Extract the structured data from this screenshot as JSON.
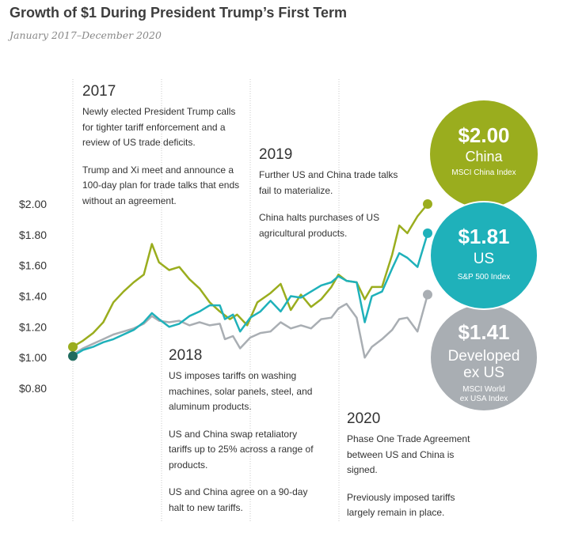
{
  "title": "Growth of $1 During President Trump’s First Term",
  "subtitle": "January 2017–December 2020",
  "chart_data": {
    "type": "line",
    "y_tick_labels": [
      "$2.00",
      "$1.80",
      "$1.60",
      "$1.40",
      "$1.20",
      "$1.00",
      "$0.80"
    ],
    "y_ticks": [
      2.0,
      1.8,
      1.6,
      1.4,
      1.2,
      1.0,
      0.8
    ],
    "ylim": [
      0.8,
      2.0
    ],
    "x_range": [
      "2017-01",
      "2020-12"
    ],
    "x_start": 2017.0,
    "x_end": 2020.92,
    "year_dividers": [
      2017.0,
      2018.0,
      2019.0,
      2020.0
    ],
    "series": [
      {
        "name": "China",
        "color": "#9aad1e",
        "points": [
          [
            2017.0,
            1.07
          ],
          [
            2017.1,
            1.11
          ],
          [
            2017.2,
            1.16
          ],
          [
            2017.3,
            1.23
          ],
          [
            2017.4,
            1.36
          ],
          [
            2017.5,
            1.43
          ],
          [
            2017.6,
            1.49
          ],
          [
            2017.7,
            1.54
          ],
          [
            2017.78,
            1.74
          ],
          [
            2017.85,
            1.62
          ],
          [
            2017.95,
            1.57
          ],
          [
            2018.05,
            1.59
          ],
          [
            2018.15,
            1.51
          ],
          [
            2018.25,
            1.45
          ],
          [
            2018.35,
            1.36
          ],
          [
            2018.45,
            1.3
          ],
          [
            2018.55,
            1.25
          ],
          [
            2018.62,
            1.28
          ],
          [
            2018.72,
            1.21
          ],
          [
            2018.82,
            1.36
          ],
          [
            2018.95,
            1.42
          ],
          [
            2019.05,
            1.48
          ],
          [
            2019.15,
            1.31
          ],
          [
            2019.25,
            1.41
          ],
          [
            2019.35,
            1.33
          ],
          [
            2019.45,
            1.38
          ],
          [
            2019.55,
            1.46
          ],
          [
            2019.62,
            1.54
          ],
          [
            2019.7,
            1.5
          ],
          [
            2019.8,
            1.49
          ],
          [
            2019.88,
            1.38
          ],
          [
            2019.95,
            1.46
          ],
          [
            2020.05,
            1.46
          ],
          [
            2020.15,
            1.67
          ],
          [
            2020.22,
            1.86
          ],
          [
            2020.3,
            1.81
          ],
          [
            2020.4,
            1.92
          ],
          [
            2020.5,
            2.0
          ]
        ]
      },
      {
        "name": "US",
        "color": "#1fb1ba",
        "points": [
          [
            2017.0,
            1.01
          ],
          [
            2017.1,
            1.05
          ],
          [
            2017.2,
            1.07
          ],
          [
            2017.3,
            1.1
          ],
          [
            2017.4,
            1.12
          ],
          [
            2017.5,
            1.15
          ],
          [
            2017.6,
            1.18
          ],
          [
            2017.7,
            1.23
          ],
          [
            2017.78,
            1.29
          ],
          [
            2017.85,
            1.25
          ],
          [
            2017.95,
            1.2
          ],
          [
            2018.05,
            1.22
          ],
          [
            2018.15,
            1.27
          ],
          [
            2018.25,
            1.3
          ],
          [
            2018.35,
            1.34
          ],
          [
            2018.45,
            1.34
          ],
          [
            2018.5,
            1.25
          ],
          [
            2018.58,
            1.28
          ],
          [
            2018.65,
            1.17
          ],
          [
            2018.75,
            1.26
          ],
          [
            2018.85,
            1.3
          ],
          [
            2018.95,
            1.37
          ],
          [
            2019.05,
            1.3
          ],
          [
            2019.15,
            1.4
          ],
          [
            2019.25,
            1.39
          ],
          [
            2019.35,
            1.43
          ],
          [
            2019.45,
            1.47
          ],
          [
            2019.55,
            1.49
          ],
          [
            2019.62,
            1.53
          ],
          [
            2019.7,
            1.5
          ],
          [
            2019.8,
            1.49
          ],
          [
            2019.88,
            1.23
          ],
          [
            2019.95,
            1.4
          ],
          [
            2020.05,
            1.43
          ],
          [
            2020.15,
            1.58
          ],
          [
            2020.22,
            1.68
          ],
          [
            2020.3,
            1.65
          ],
          [
            2020.4,
            1.59
          ],
          [
            2020.5,
            1.81
          ]
        ]
      },
      {
        "name": "Developed ex US",
        "color": "#a9aeb3",
        "points": [
          [
            2017.0,
            1.02
          ],
          [
            2017.1,
            1.06
          ],
          [
            2017.2,
            1.09
          ],
          [
            2017.3,
            1.12
          ],
          [
            2017.4,
            1.15
          ],
          [
            2017.5,
            1.17
          ],
          [
            2017.6,
            1.19
          ],
          [
            2017.7,
            1.22
          ],
          [
            2017.78,
            1.27
          ],
          [
            2017.85,
            1.24
          ],
          [
            2017.95,
            1.23
          ],
          [
            2018.05,
            1.24
          ],
          [
            2018.15,
            1.21
          ],
          [
            2018.25,
            1.23
          ],
          [
            2018.35,
            1.21
          ],
          [
            2018.45,
            1.22
          ],
          [
            2018.5,
            1.12
          ],
          [
            2018.58,
            1.14
          ],
          [
            2018.65,
            1.06
          ],
          [
            2018.75,
            1.13
          ],
          [
            2018.85,
            1.16
          ],
          [
            2018.95,
            1.17
          ],
          [
            2019.05,
            1.23
          ],
          [
            2019.15,
            1.19
          ],
          [
            2019.25,
            1.21
          ],
          [
            2019.35,
            1.19
          ],
          [
            2019.45,
            1.25
          ],
          [
            2019.55,
            1.26
          ],
          [
            2019.62,
            1.32
          ],
          [
            2019.7,
            1.35
          ],
          [
            2019.8,
            1.26
          ],
          [
            2019.88,
            1.0
          ],
          [
            2019.95,
            1.07
          ],
          [
            2020.05,
            1.12
          ],
          [
            2020.15,
            1.18
          ],
          [
            2020.22,
            1.25
          ],
          [
            2020.3,
            1.26
          ],
          [
            2020.4,
            1.17
          ],
          [
            2020.5,
            1.41
          ]
        ]
      }
    ],
    "end_labels": [
      {
        "value": "$2.00",
        "name": "China",
        "index": "MSCI China Index",
        "color": "#9aad1e"
      },
      {
        "value": "$1.81",
        "name": "US",
        "index": "S&P 500 Index",
        "color": "#1fb1ba"
      },
      {
        "value": "$1.41",
        "name_line1": "Developed",
        "name_line2": "ex US",
        "index_line1": "MSCI World",
        "index_line2": "ex USA Index",
        "color": "#a9aeb3"
      }
    ],
    "start_marker_color": "#1f6b5e"
  },
  "annotations": {
    "y2017": {
      "year": "2017",
      "p1": "Newly elected President Trump calls for tighter tariff enforcement and a review of US trade deficits.",
      "p2": "Trump and Xi meet and announce a 100-day plan for trade talks that ends without an agreement."
    },
    "y2018": {
      "year": "2018",
      "p1": "US imposes tariffs on washing machines, solar panels, steel, and aluminum products.",
      "p2": "US and China swap retaliatory tariffs up to 25% across a range of products.",
      "p3": "US and China agree on a 90-day halt to new tariffs."
    },
    "y2019": {
      "year": "2019",
      "p1": "Further US and China trade talks fail to materialize.",
      "p2": "China halts purchases of US agricultural products."
    },
    "y2020": {
      "year": "2020",
      "p1": "Phase One Trade Agreement between US and China is signed.",
      "p2": "Previously imposed tariffs largely remain in place."
    }
  }
}
